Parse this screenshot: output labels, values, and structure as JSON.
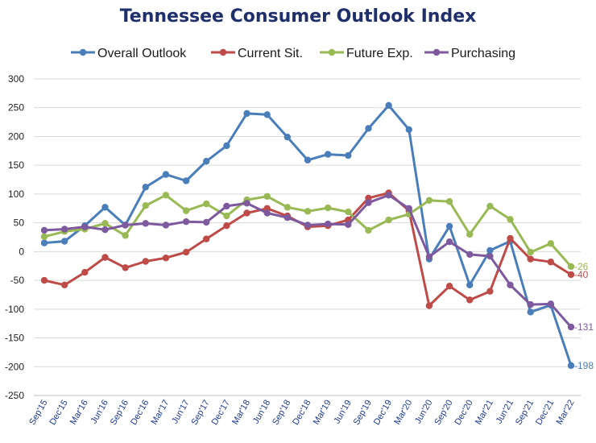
{
  "chart_data": {
    "type": "line",
    "title": "Tennessee Consumer Outlook Index",
    "xlabel": "",
    "ylabel": "",
    "ylim": [
      -250,
      300
    ],
    "yticks": [
      300,
      250,
      200,
      150,
      100,
      50,
      0,
      -50,
      -100,
      -150,
      -200,
      -250
    ],
    "grid": true,
    "legend_position": "top",
    "categories": [
      "Sep'15",
      "Dec'15",
      "Mar'16",
      "Jun'16",
      "Sep'16",
      "Dec'16",
      "Mar'17",
      "Jun'17",
      "Sep'17",
      "Dec'17",
      "Mar'18",
      "Jun'18",
      "Sep'18",
      "Dec'18",
      "Mar'19",
      "Jun'19",
      "Sep'19",
      "Dec'19",
      "Mar'20",
      "Jun'20",
      "Sep'20",
      "Dec'20",
      "Mar'21",
      "Jun'21",
      "Sep'21",
      "Dec'21",
      "Mar'22"
    ],
    "x": [
      "Sep'15",
      "Dec'15",
      "Mar'16",
      "Jun'16",
      "Sep'16",
      "Dec'16",
      "Mar'17",
      "Jun'17",
      "Sep'17",
      "Dec'17",
      "Mar'18",
      "Jun'18",
      "Sep'18",
      "Dec'18",
      "Mar'19",
      "Jun'19",
      "Sep'19",
      "Dec'19",
      "Mar'20",
      "Jun'20",
      "Sep'20",
      "Dec'20",
      "Mar'21",
      "Jun'21",
      "Sep'21",
      "Dec'21",
      "Mar'22"
    ],
    "xtick_labels": [
      "Sep'15",
      "Dec'15",
      "Mar'16",
      "Jun'16",
      "Sep'16",
      "Dec'16",
      "Mar'17",
      "Jun'17",
      "Sep'17",
      "Dec'17",
      "Mar'18",
      "Jun'18",
      "Sep'18",
      "Dec'18",
      "Mar'19",
      "Jun'19",
      "Sep'19",
      "Dec'19",
      "Mar'20",
      "Jun'20",
      "Sep'20",
      "Dec'20",
      "Mar'21",
      "Jun'21",
      "Sep'21",
      "Dec'21",
      "Mar'22"
    ],
    "series": [
      {
        "name": "Overall Outlook",
        "color": "#4a7ebb",
        "values": [
          15,
          18,
          45,
          77,
          46,
          112,
          134,
          123,
          157,
          184,
          240,
          238,
          199,
          159,
          169,
          167,
          214,
          254,
          212,
          -13,
          44,
          -58,
          2,
          18,
          -105,
          -93,
          -198
        ],
        "end_label": "-198"
      },
      {
        "name": "Current Sit.",
        "color": "#be4b48",
        "values": [
          -50,
          -58,
          -36,
          -10,
          -28,
          -17,
          -11,
          -1,
          22,
          45,
          67,
          75,
          62,
          43,
          45,
          55,
          93,
          102,
          71,
          -94,
          -60,
          -84,
          -69,
          23,
          -13,
          -18,
          -40
        ],
        "end_label": "-40"
      },
      {
        "name": "Future Exp.",
        "color": "#98b954",
        "values": [
          26,
          35,
          39,
          49,
          28,
          80,
          98,
          71,
          83,
          62,
          90,
          96,
          77,
          70,
          76,
          69,
          37,
          55,
          65,
          89,
          87,
          30,
          79,
          56,
          -1,
          14,
          -26
        ],
        "end_label": "-26"
      },
      {
        "name": "Purchasing",
        "color": "#7d5a9e",
        "values": [
          37,
          39,
          43,
          38,
          46,
          49,
          46,
          52,
          51,
          79,
          84,
          67,
          59,
          46,
          48,
          47,
          85,
          98,
          75,
          -9,
          17,
          -5,
          -8,
          -58,
          -92,
          -91,
          -131
        ],
        "end_label": "-131"
      }
    ]
  }
}
